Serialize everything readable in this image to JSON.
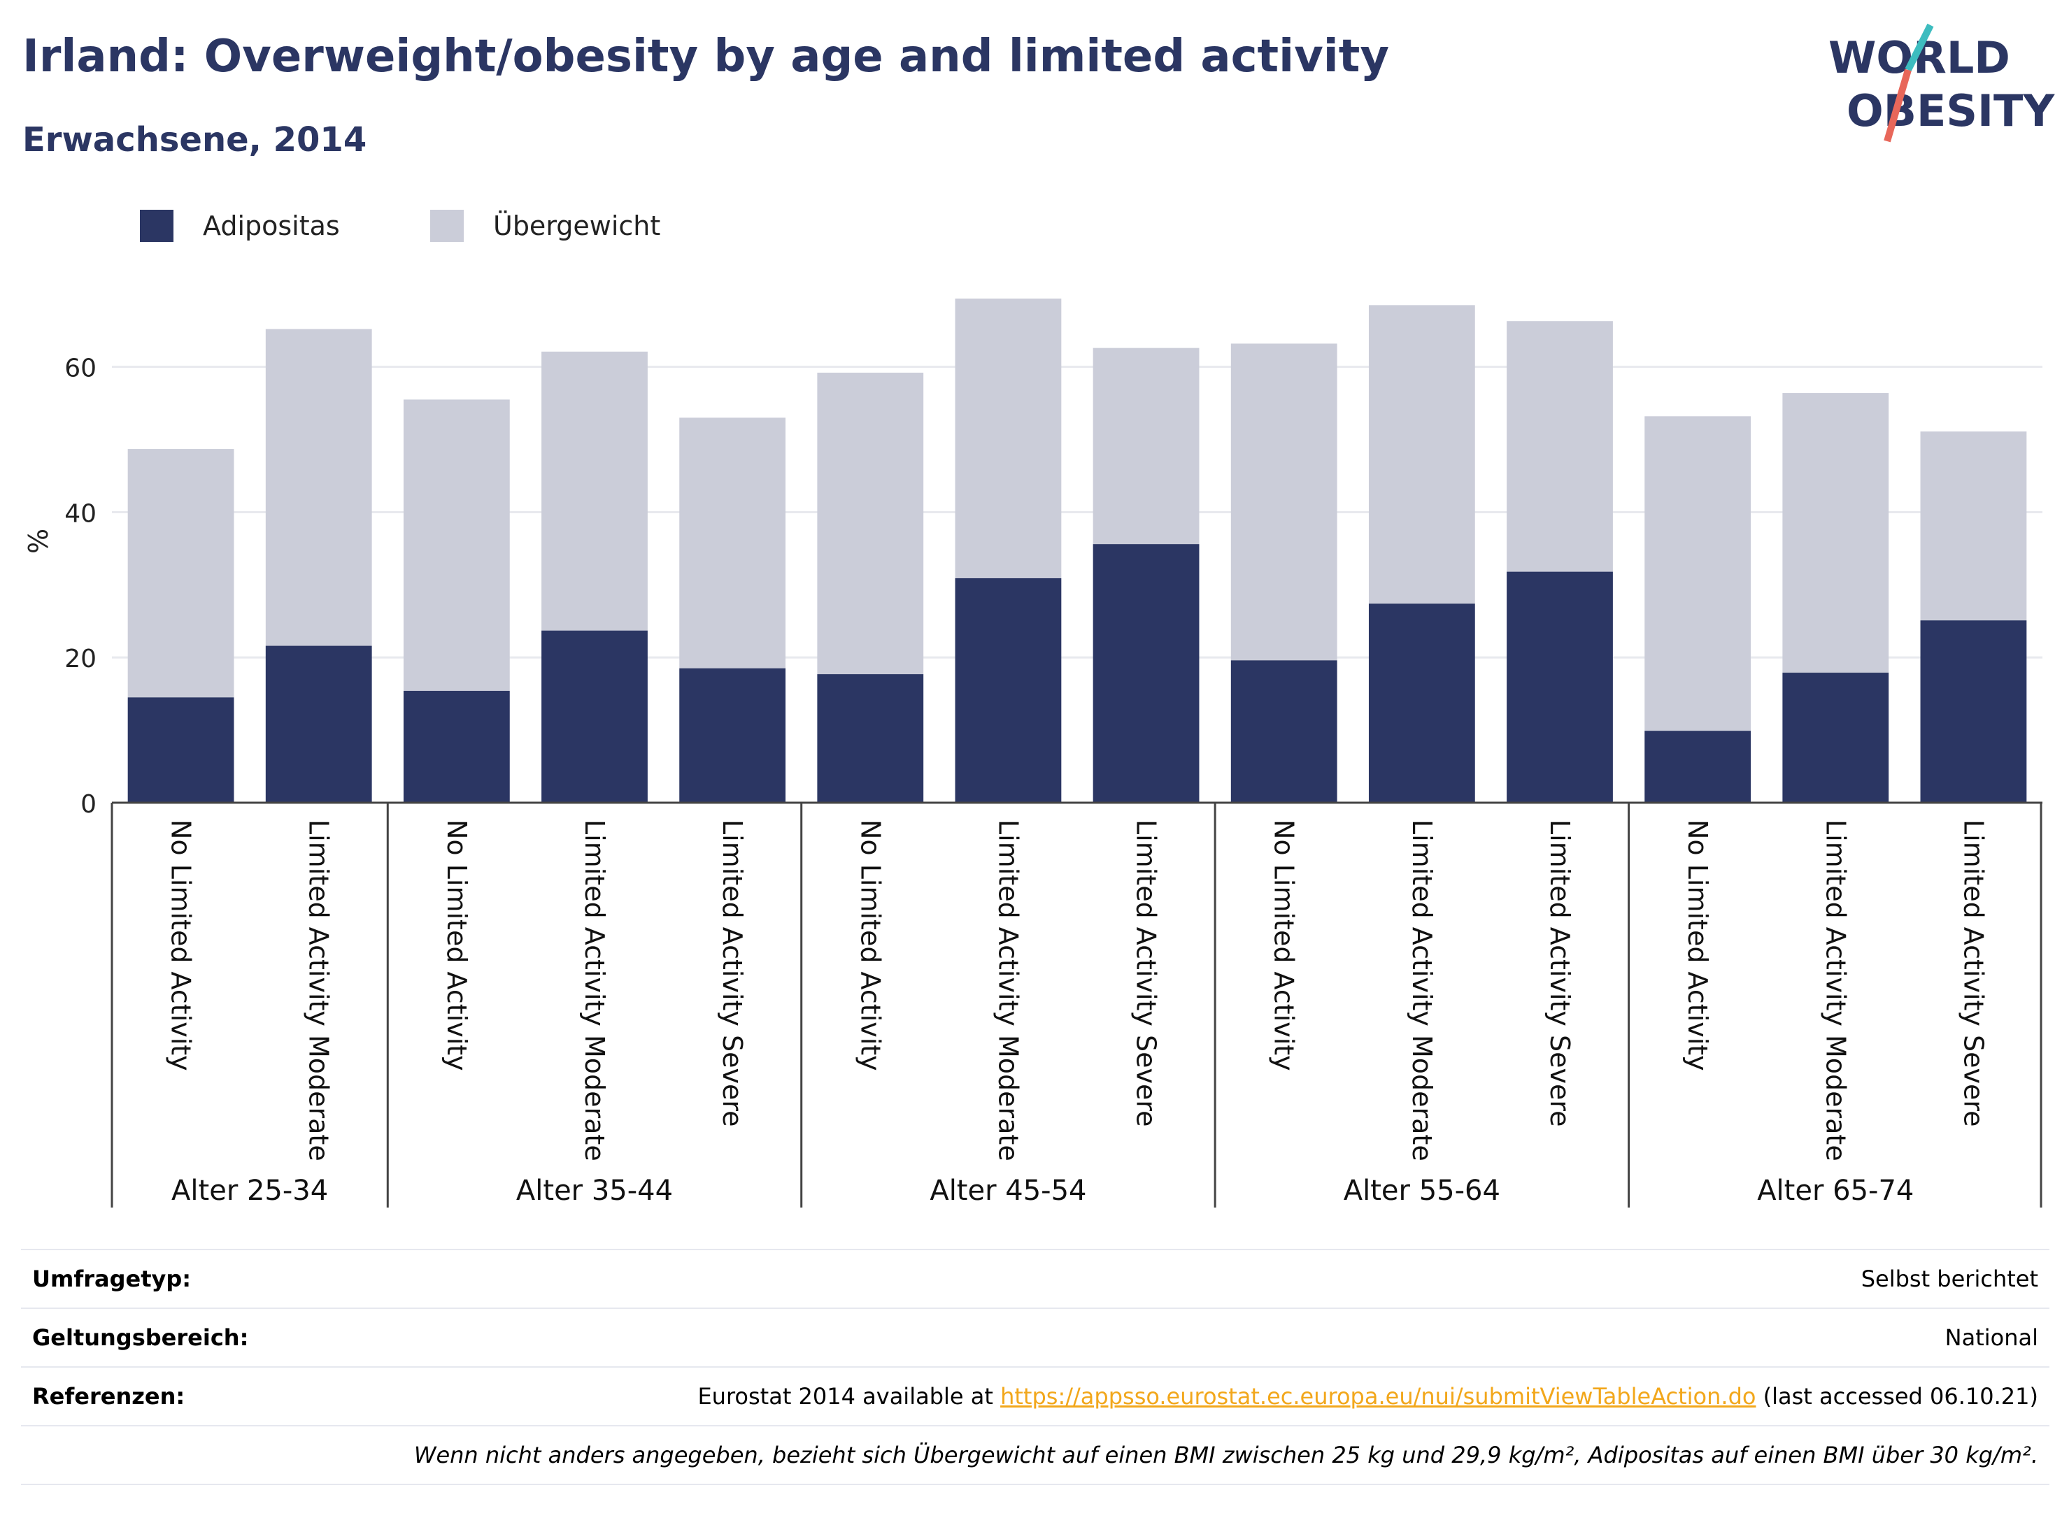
{
  "header": {
    "title": "Irland: Overweight/obesity by age and limited activity",
    "subtitle": "Erwachsene, 2014"
  },
  "logo": {
    "line1": "WORLD",
    "line2": "OBESITY"
  },
  "colors": {
    "obesity": "#2b3663",
    "overweight": "#cbcdd9",
    "accent_teal": "#3dbcbf",
    "accent_red": "#e8675a",
    "link": "#f2a71b"
  },
  "chart_data": {
    "type": "bar",
    "stacked": true,
    "ylabel": "%",
    "ylim": [
      0,
      72
    ],
    "yticks": [
      0,
      20,
      40,
      60
    ],
    "grid": true,
    "legend_position": "top-left",
    "series": [
      {
        "name": "Adipositas",
        "color": "#2b3663",
        "values": [
          14.5,
          21.6,
          15.4,
          23.7,
          18.5,
          17.7,
          30.9,
          35.6,
          19.6,
          27.4,
          31.8,
          9.9,
          17.9,
          25.1
        ]
      },
      {
        "name": "Übergewicht",
        "color": "#cbcdd9",
        "values": [
          34.2,
          43.6,
          40.1,
          38.4,
          34.5,
          41.5,
          38.5,
          27.0,
          43.6,
          41.1,
          34.5,
          43.3,
          38.5,
          26.0
        ]
      }
    ],
    "categories": [
      "No Limited Activity",
      "Limited Activity Moderate",
      "No Limited Activity",
      "Limited Activity Moderate",
      "Limited Activity Severe",
      "No Limited Activity",
      "Limited Activity Moderate",
      "Limited Activity Severe",
      "No Limited Activity",
      "Limited Activity Moderate",
      "Limited Activity Severe",
      "No Limited Activity",
      "Limited Activity Moderate",
      "Limited Activity Severe"
    ],
    "groups": [
      {
        "label": "Alter 25-34",
        "count": 2
      },
      {
        "label": "Alter 35-44",
        "count": 3
      },
      {
        "label": "Alter 45-54",
        "count": 3
      },
      {
        "label": "Alter 55-64",
        "count": 3
      },
      {
        "label": "Alter 65-74",
        "count": 3
      }
    ]
  },
  "info": {
    "survey_label": "Umfragetyp:",
    "survey_value": "Selbst berichtet",
    "scope_label": "Geltungsbereich:",
    "scope_value": "National",
    "refs_label": "Referenzen:",
    "refs_prefix": "Eurostat 2014 available at ",
    "refs_link": "https://appsso.eurostat.ec.europa.eu/nui/submitViewTableAction.do",
    "refs_suffix": " (last accessed 06.10.21)",
    "note": "Wenn nicht anders angegeben, bezieht sich Übergewicht auf einen BMI zwischen 25 kg und 29,9 kg/m², Adipositas auf einen BMI über 30 kg/m²."
  }
}
